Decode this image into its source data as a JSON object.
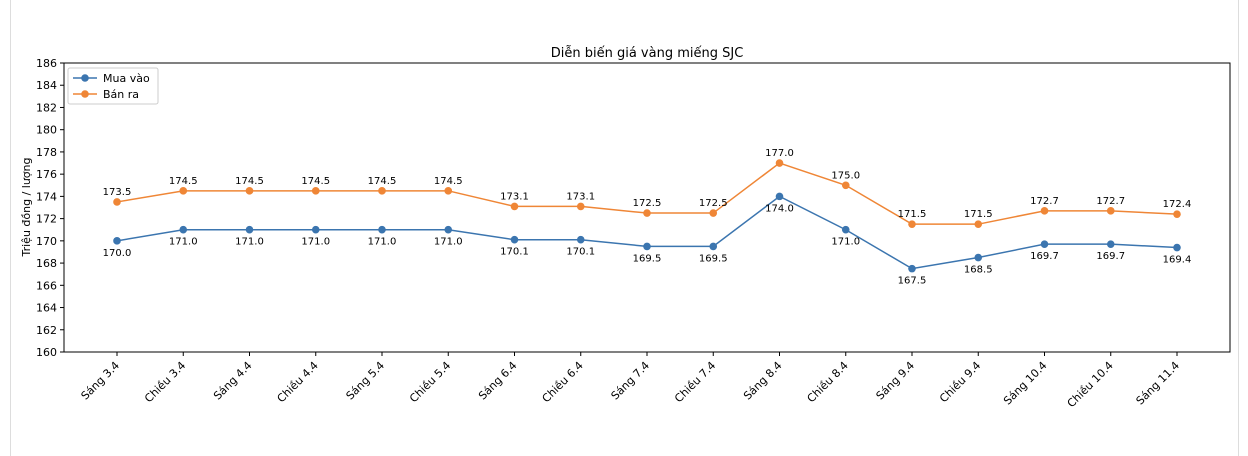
{
  "chart_data": {
    "type": "line",
    "title": "Diễn biến giá vàng miếng SJC",
    "xlabel": "",
    "ylabel": "Triệu đồng / lượng",
    "ylim": [
      160,
      186
    ],
    "yticks": [
      160,
      162,
      164,
      166,
      168,
      170,
      172,
      174,
      176,
      178,
      180,
      182,
      184,
      186
    ],
    "grid": false,
    "legend_position": "top-left",
    "categories": [
      "Sáng 3.4",
      "Chiều 3.4",
      "Sáng 4.4",
      "Chiều 4.4",
      "Sáng 5.4",
      "Chiều 5.4",
      "Sáng 6.4",
      "Chiều 6.4",
      "Sáng 7.4",
      "Chiều 7.4",
      "Sáng 8.4",
      "Chiều 8.4",
      "Sáng 9.4",
      "Chiều 9.4",
      "Sáng 10.4",
      "Chiều 10.4",
      "Sáng 11.4"
    ],
    "series": [
      {
        "name": "Mua vào",
        "color": "#3b75af",
        "label_position": "below",
        "values": [
          170.0,
          171.0,
          171.0,
          171.0,
          171.0,
          171.0,
          170.1,
          170.1,
          169.5,
          169.5,
          174.0,
          171.0,
          167.5,
          168.5,
          169.7,
          169.7,
          169.4
        ]
      },
      {
        "name": "Bán ra",
        "color": "#ef8636",
        "label_position": "above",
        "values": [
          173.5,
          174.5,
          174.5,
          174.5,
          174.5,
          174.5,
          173.1,
          173.1,
          172.5,
          172.5,
          177.0,
          175.0,
          171.5,
          171.5,
          172.7,
          172.7,
          172.4
        ]
      }
    ]
  }
}
